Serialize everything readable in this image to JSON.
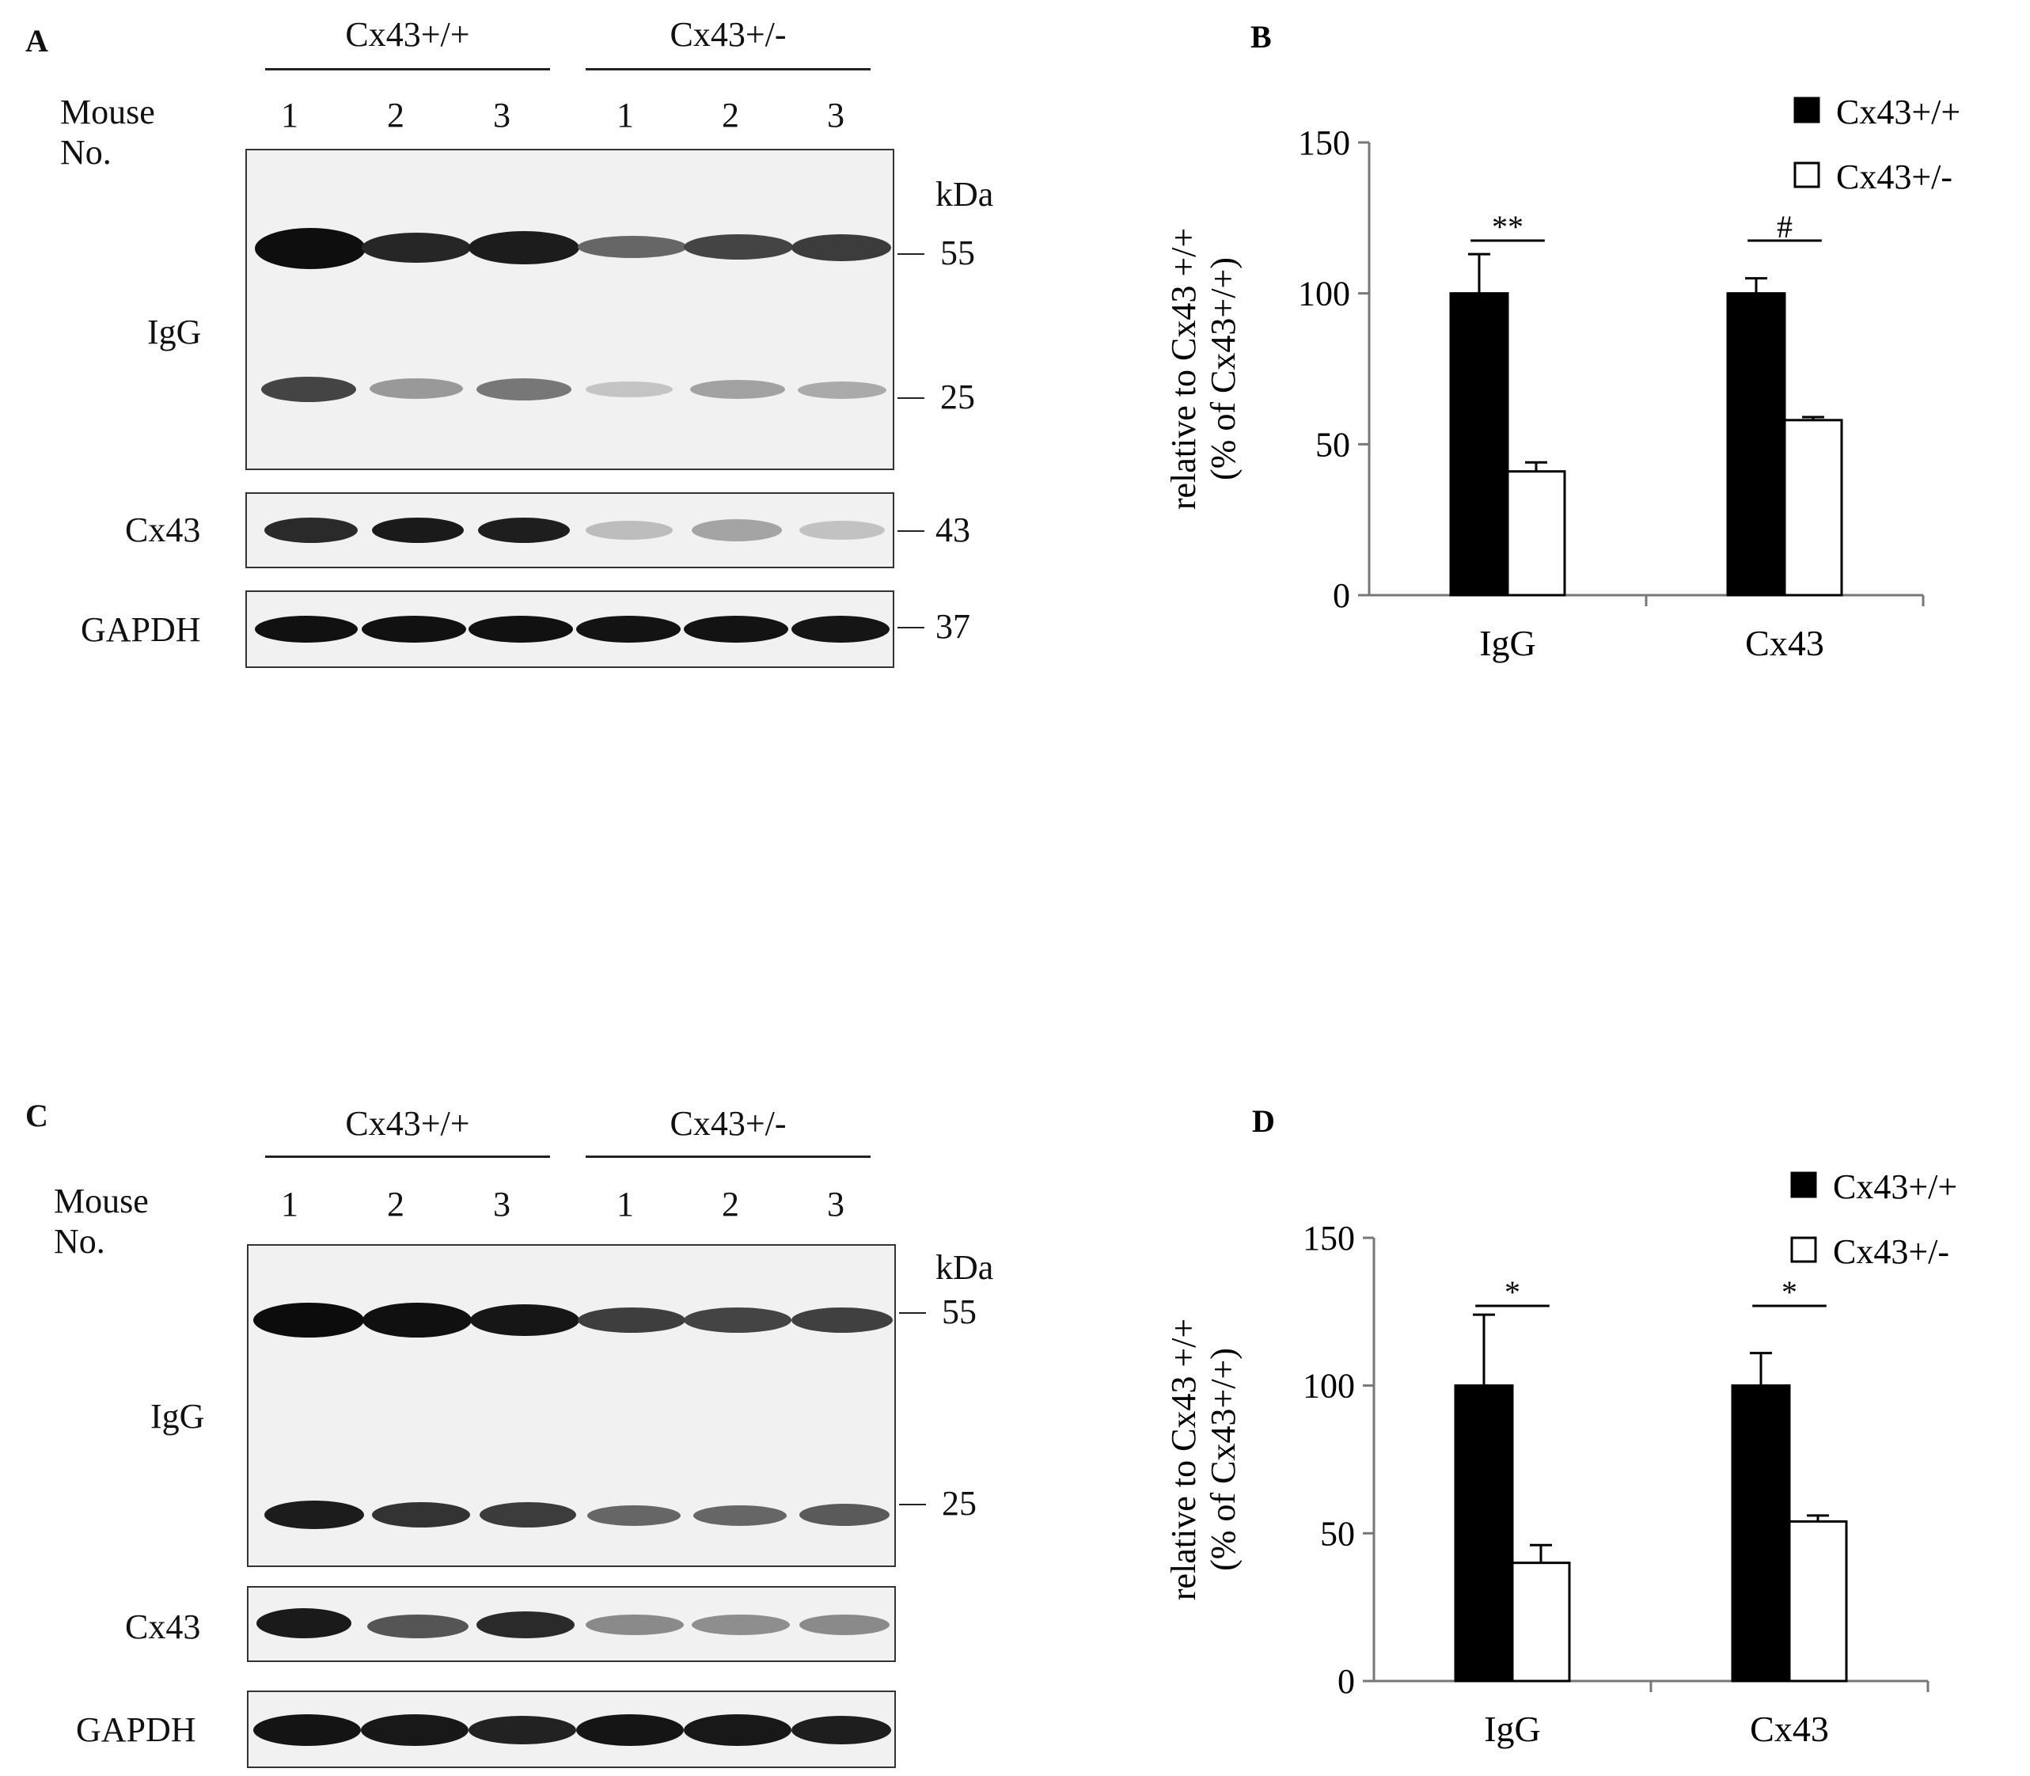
{
  "blot_a": {
    "panel_label": "A",
    "groups": [
      "Cx43+/+",
      "Cx43+/-"
    ],
    "mouse_label": "Mouse No.",
    "lanes": [
      "1",
      "2",
      "3",
      "1",
      "2",
      "3"
    ],
    "rows": [
      "IgG",
      "Cx43",
      "GAPDH"
    ],
    "kda_label": "kDa",
    "markers": [
      "55",
      "25",
      "43",
      "37"
    ]
  },
  "blot_c": {
    "panel_label": "C",
    "groups": [
      "Cx43+/+",
      "Cx43+/-"
    ],
    "mouse_label": "Mouse No.",
    "lanes": [
      "1",
      "2",
      "3",
      "1",
      "2",
      "3"
    ],
    "rows": [
      "IgG",
      "Cx43",
      "GAPDH"
    ],
    "kda_label": "kDa",
    "markers": [
      "55",
      "25"
    ]
  },
  "chart_data": [
    {
      "panel_label": "B",
      "type": "bar",
      "categories": [
        "IgG",
        "Cx43"
      ],
      "series": [
        {
          "name": "Cx43+/+",
          "values": [
            100,
            100
          ],
          "errors": [
            13,
            5
          ],
          "color": "#000000"
        },
        {
          "name": "Cx43+/-",
          "values": [
            41,
            58
          ],
          "errors": [
            3,
            1
          ],
          "color": "#ffffff"
        }
      ],
      "ylabel": "relative to Cx43 +/+ (% of Cx43+/+)",
      "ylabel_line1": "relative to Cx43 +/+",
      "ylabel_line2": "(% of Cx43+/+)",
      "ylim": [
        0,
        150
      ],
      "yticks": [
        "0",
        "50",
        "100",
        "150"
      ],
      "significance": [
        "**",
        "#"
      ],
      "legend_position": "top-right",
      "grid": false
    },
    {
      "panel_label": "D",
      "type": "bar",
      "categories": [
        "IgG",
        "Cx43"
      ],
      "series": [
        {
          "name": "Cx43+/+",
          "values": [
            100,
            100
          ],
          "errors": [
            24,
            11
          ],
          "color": "#000000"
        },
        {
          "name": "Cx43+/-",
          "values": [
            40,
            54
          ],
          "errors": [
            6,
            2
          ],
          "color": "#ffffff"
        }
      ],
      "ylabel": "relative to Cx43 +/+ (% of Cx43+/+)",
      "ylabel_line1": "relative to Cx43 +/+",
      "ylabel_line2": "(% of Cx43+/+)",
      "ylim": [
        0,
        150
      ],
      "yticks": [
        "0",
        "50",
        "100",
        "150"
      ],
      "significance": [
        "*",
        "*"
      ],
      "legend_position": "top-right",
      "grid": false
    }
  ]
}
